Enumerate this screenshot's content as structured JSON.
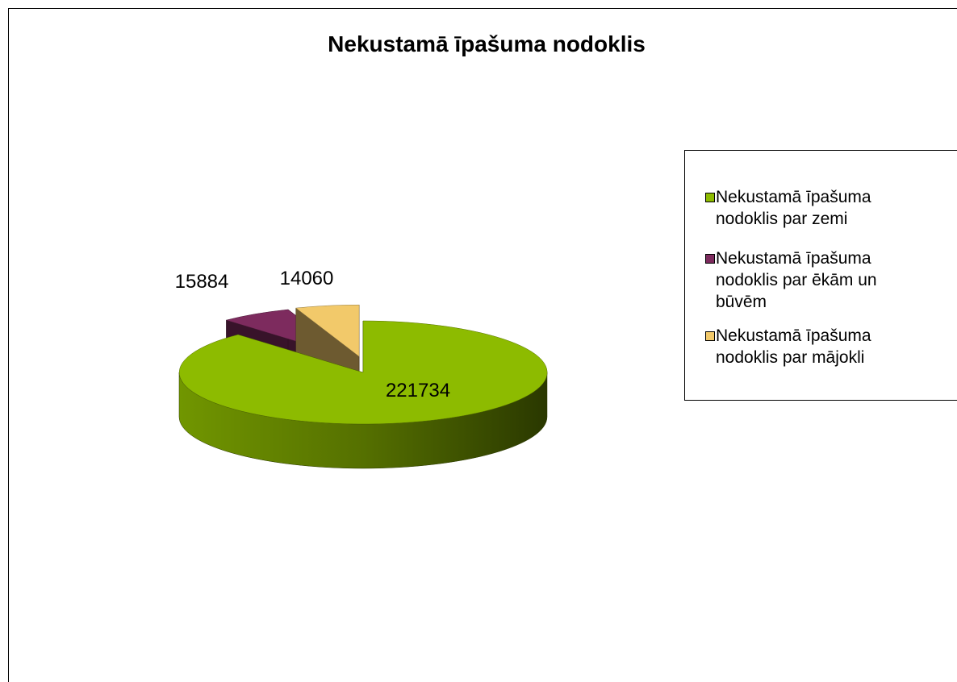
{
  "chart_data": {
    "type": "pie3d",
    "title": "Nekustamā īpašuma nodoklis",
    "categories": [
      "Nekustamā īpašuma nodoklis par zemi",
      "Nekustamā īpašuma nodoklis par ēkām un būvēm",
      "Nekustamā īpašuma nodoklis par mājokli"
    ],
    "values": [
      221734,
      15884,
      14060
    ],
    "colors": [
      "#8dbb00",
      "#7d2b5e",
      "#f2c96a"
    ],
    "legend": "right"
  }
}
